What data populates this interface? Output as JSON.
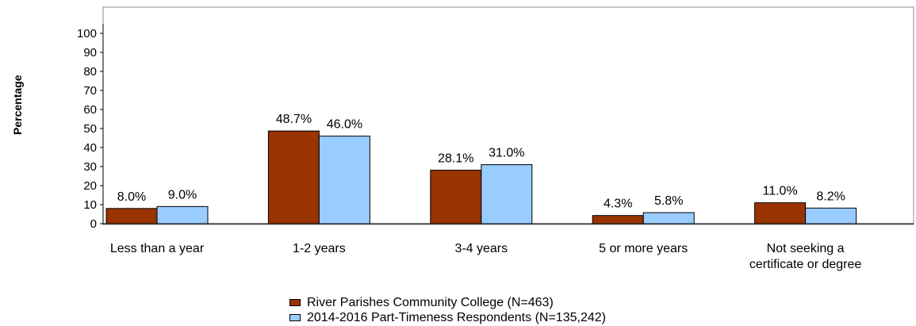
{
  "chart_data": {
    "type": "bar",
    "categories": [
      "Less than a year",
      "1-2 years",
      "3-4 years",
      "5 or more years",
      "Not seeking a\ncertificate or degree"
    ],
    "series": [
      {
        "name": "River Parishes Community College (N=463)",
        "values": [
          8.0,
          48.7,
          28.1,
          4.3,
          11.0
        ],
        "labels": [
          "8.0%",
          "48.7%",
          "28.1%",
          "4.3%",
          "11.0%"
        ],
        "color": "#993300"
      },
      {
        "name": "2014-2016 Part-Timeness Respondents (N=135,242)",
        "values": [
          9.0,
          46.0,
          31.0,
          5.8,
          8.2
        ],
        "labels": [
          "9.0%",
          "46.0%",
          "31.0%",
          "5.8%",
          "8.2%"
        ],
        "color": "#99ccff"
      }
    ],
    "ylabel": "Percentage",
    "xlabel": "",
    "ylim": [
      0,
      100
    ],
    "yticks": [
      0,
      10,
      20,
      30,
      40,
      50,
      60,
      70,
      80,
      90,
      100
    ],
    "grid": false,
    "legend_position": "bottom"
  }
}
